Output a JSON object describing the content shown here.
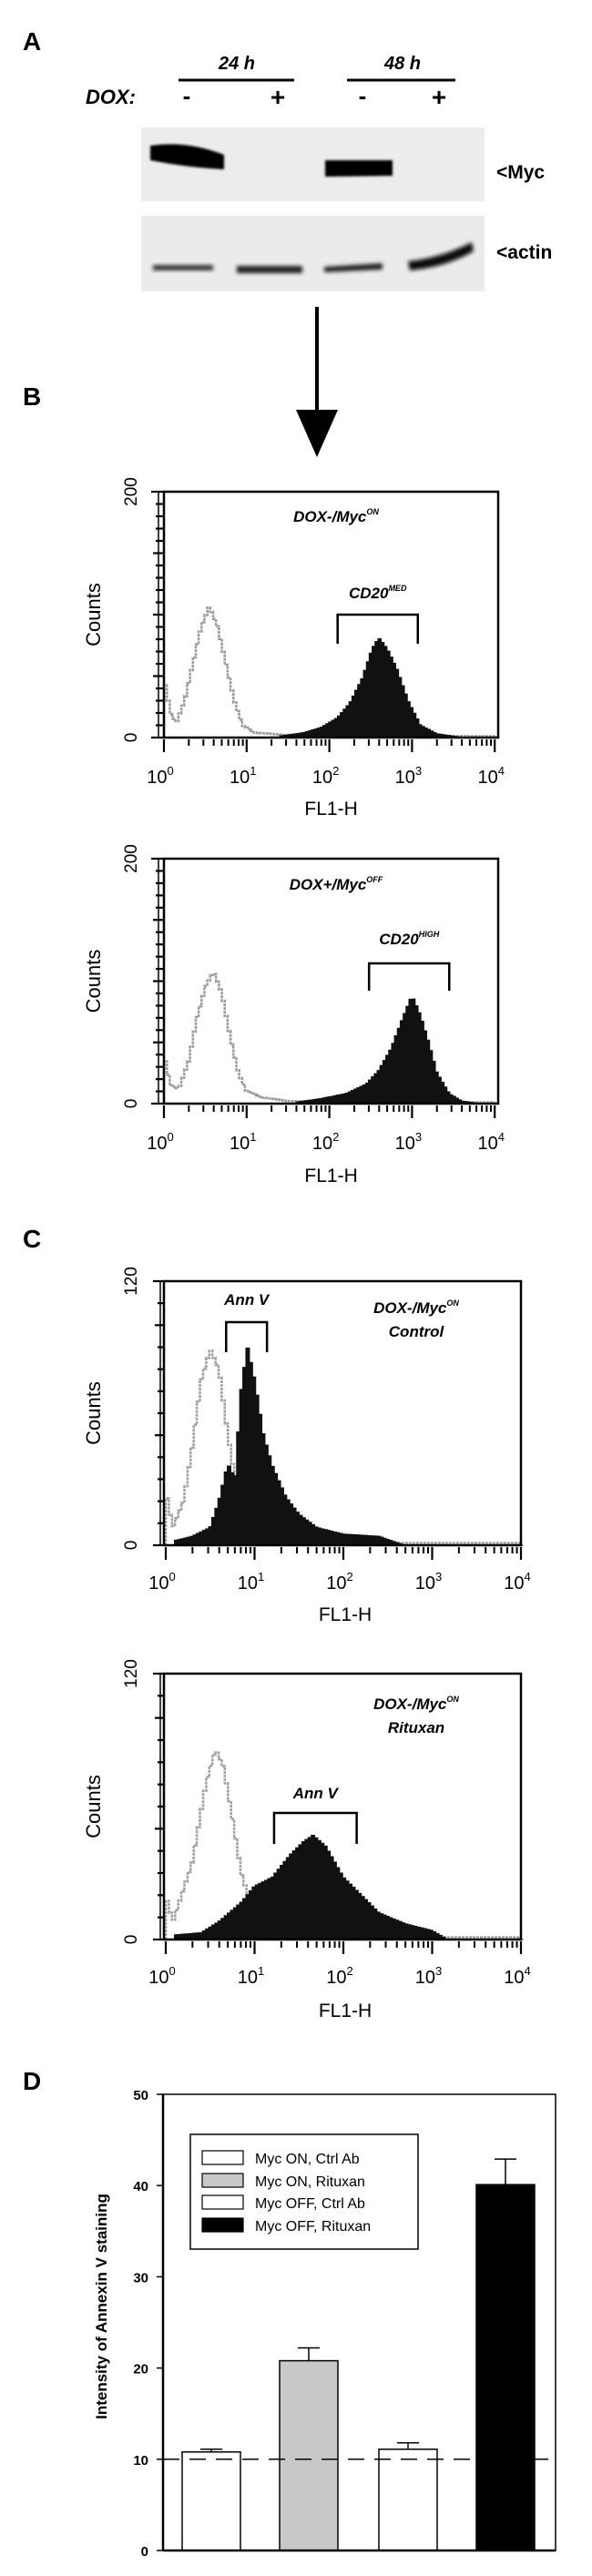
{
  "panel_labels": {
    "a": "A",
    "b": "B",
    "c": "C",
    "d": "D"
  },
  "western_blot": {
    "timepoints": [
      "24 h",
      "48 h"
    ],
    "treatment_label": "DOX:",
    "lanes": [
      "-",
      "+",
      "-",
      "+"
    ],
    "bands": [
      "<Myc",
      "<actin"
    ]
  },
  "chart_data": [
    {
      "type": "area",
      "title": "DOX-/Myc",
      "title_sup": "ON",
      "subtitle": "",
      "gate_label": "CD20",
      "gate_sup": "MED",
      "gate_range_log": [
        2.1,
        3.07
      ],
      "ylabel": "Counts",
      "xlabel": "FL1-H",
      "ylim": [
        0,
        200
      ],
      "yticks": [
        "0",
        "200"
      ],
      "xlim_log": [
        0,
        4
      ],
      "xticks": [
        {
          "base": "10",
          "exp": "0"
        },
        {
          "base": "10",
          "exp": "1"
        },
        {
          "base": "10",
          "exp": "2"
        },
        {
          "base": "10",
          "exp": "3"
        },
        {
          "base": "10",
          "exp": "4"
        }
      ],
      "series": [
        {
          "name": "control",
          "color": "#9a9a9a",
          "points": [
            [
              0,
              49
            ],
            [
              0.08,
              20
            ],
            [
              0.15,
              12
            ],
            [
              0.25,
              30
            ],
            [
              0.35,
              60
            ],
            [
              0.45,
              90
            ],
            [
              0.55,
              107
            ],
            [
              0.65,
              90
            ],
            [
              0.75,
              60
            ],
            [
              0.85,
              30
            ],
            [
              0.95,
              10
            ],
            [
              1.1,
              4
            ],
            [
              1.5,
              2
            ],
            [
              4,
              1
            ]
          ]
        },
        {
          "name": "stained",
          "color": "#111111",
          "points": [
            [
              1.4,
              1
            ],
            [
              1.7,
              4
            ],
            [
              1.9,
              8
            ],
            [
              2.1,
              16
            ],
            [
              2.25,
              28
            ],
            [
              2.4,
              48
            ],
            [
              2.52,
              72
            ],
            [
              2.6,
              81
            ],
            [
              2.7,
              72
            ],
            [
              2.82,
              55
            ],
            [
              2.95,
              30
            ],
            [
              3.1,
              10
            ],
            [
              3.3,
              3
            ],
            [
              3.6,
              0
            ]
          ]
        }
      ]
    },
    {
      "type": "area",
      "title": "DOX+/Myc",
      "title_sup": "OFF",
      "subtitle": "",
      "gate_label": "CD20",
      "gate_sup": "HIGH",
      "gate_range_log": [
        2.48,
        3.45
      ],
      "ylabel": "Counts",
      "xlabel": "FL1-H",
      "ylim": [
        0,
        200
      ],
      "yticks": [
        "0",
        "200"
      ],
      "xlim_log": [
        0,
        4
      ],
      "xticks": [
        {
          "base": "10",
          "exp": "0"
        },
        {
          "base": "10",
          "exp": "1"
        },
        {
          "base": "10",
          "exp": "2"
        },
        {
          "base": "10",
          "exp": "3"
        },
        {
          "base": "10",
          "exp": "4"
        }
      ],
      "series": [
        {
          "name": "control",
          "color": "#9a9a9a",
          "points": [
            [
              0,
              40
            ],
            [
              0.08,
              15
            ],
            [
              0.18,
              12
            ],
            [
              0.3,
              35
            ],
            [
              0.4,
              70
            ],
            [
              0.5,
              95
            ],
            [
              0.6,
              108
            ],
            [
              0.7,
              90
            ],
            [
              0.8,
              55
            ],
            [
              0.9,
              25
            ],
            [
              1.0,
              10
            ],
            [
              1.2,
              5
            ],
            [
              1.5,
              2
            ],
            [
              4,
              1
            ]
          ]
        },
        {
          "name": "stained",
          "color": "#111111",
          "points": [
            [
              1.6,
              1
            ],
            [
              1.9,
              4
            ],
            [
              2.2,
              8
            ],
            [
              2.45,
              16
            ],
            [
              2.6,
              27
            ],
            [
              2.75,
              45
            ],
            [
              2.88,
              68
            ],
            [
              3.0,
              88
            ],
            [
              3.1,
              72
            ],
            [
              3.2,
              50
            ],
            [
              3.3,
              25
            ],
            [
              3.45,
              8
            ],
            [
              3.6,
              2
            ],
            [
              3.8,
              0
            ]
          ]
        }
      ]
    },
    {
      "type": "area",
      "title": "DOX-/Myc",
      "title_sup": "ON",
      "subtitle": "Control",
      "gate_label": "Ann V",
      "gate_sup": "",
      "gate_range_log": [
        0.68,
        1.14
      ],
      "ylabel": "Counts",
      "xlabel": "FL1-H",
      "ylim": [
        0,
        120
      ],
      "yticks": [
        "0",
        "120"
      ],
      "xlim_log": [
        0,
        4
      ],
      "xticks": [
        {
          "base": "10",
          "exp": "0"
        },
        {
          "base": "10",
          "exp": "1"
        },
        {
          "base": "10",
          "exp": "2"
        },
        {
          "base": "10",
          "exp": "3"
        },
        {
          "base": "10",
          "exp": "4"
        }
      ],
      "series": [
        {
          "name": "control",
          "color": "#a0a0a0",
          "points": [
            [
              0,
              25
            ],
            [
              0.08,
              8
            ],
            [
              0.2,
              20
            ],
            [
              0.3,
              45
            ],
            [
              0.4,
              75
            ],
            [
              0.5,
              89
            ],
            [
              0.6,
              80
            ],
            [
              0.7,
              50
            ],
            [
              0.8,
              25
            ],
            [
              0.9,
              12
            ],
            [
              1.1,
              6
            ],
            [
              1.3,
              5
            ],
            [
              1.6,
              4
            ],
            [
              2.0,
              1
            ],
            [
              4,
              1
            ]
          ]
        },
        {
          "name": "stained",
          "color": "#111111",
          "points": [
            [
              0.1,
              2
            ],
            [
              0.3,
              4
            ],
            [
              0.5,
              8
            ],
            [
              0.6,
              20
            ],
            [
              0.7,
              37
            ],
            [
              0.78,
              30
            ],
            [
              0.85,
              70
            ],
            [
              0.92,
              90
            ],
            [
              1.0,
              75
            ],
            [
              1.1,
              50
            ],
            [
              1.2,
              36
            ],
            [
              1.35,
              22
            ],
            [
              1.5,
              14
            ],
            [
              1.7,
              8
            ],
            [
              2.0,
              5
            ],
            [
              2.4,
              4
            ],
            [
              2.68,
              0
            ]
          ]
        }
      ]
    },
    {
      "type": "area",
      "title": "DOX-/Myc",
      "title_sup": "ON",
      "subtitle": "Rituxan",
      "gate_label": "Ann V",
      "gate_sup": "",
      "gate_range_log": [
        1.22,
        2.15
      ],
      "ylabel": "Counts",
      "xlabel": "FL1-H",
      "ylim": [
        0,
        120
      ],
      "yticks": [
        "0",
        "120"
      ],
      "xlim_log": [
        0,
        4
      ],
      "xticks": [
        {
          "base": "10",
          "exp": "0"
        },
        {
          "base": "10",
          "exp": "1"
        },
        {
          "base": "10",
          "exp": "2"
        },
        {
          "base": "10",
          "exp": "3"
        },
        {
          "base": "10",
          "exp": "4"
        }
      ],
      "series": [
        {
          "name": "control",
          "color": "#a0a0a0",
          "points": [
            [
              0,
              20
            ],
            [
              0.08,
              8
            ],
            [
              0.3,
              35
            ],
            [
              0.45,
              70
            ],
            [
              0.56,
              86
            ],
            [
              0.65,
              78
            ],
            [
              0.75,
              55
            ],
            [
              0.85,
              30
            ],
            [
              0.95,
              17
            ],
            [
              1.1,
              8
            ],
            [
              1.3,
              4
            ],
            [
              1.6,
              6
            ],
            [
              1.9,
              2
            ],
            [
              2.0,
              1
            ],
            [
              4,
              1
            ]
          ]
        },
        {
          "name": "stained",
          "color": "#111111",
          "points": [
            [
              0.1,
              2
            ],
            [
              0.4,
              3
            ],
            [
              0.6,
              8
            ],
            [
              0.86,
              17
            ],
            [
              1.0,
              24
            ],
            [
              1.2,
              28
            ],
            [
              1.4,
              38
            ],
            [
              1.55,
              44
            ],
            [
              1.66,
              47
            ],
            [
              1.8,
              42
            ],
            [
              2.0,
              28
            ],
            [
              2.2,
              20
            ],
            [
              2.4,
              12
            ],
            [
              2.7,
              7
            ],
            [
              3.0,
              4
            ],
            [
              3.17,
              0
            ]
          ]
        }
      ]
    },
    {
      "type": "bar",
      "categories": [
        "Myc ON, Ctrl Ab",
        "Myc ON, Rituxan",
        "Myc OFF, Ctrl Ab",
        "Myc OFF, Rituxan"
      ],
      "values": [
        10.8,
        20.8,
        11.1,
        40.1
      ],
      "errors": [
        0.3,
        1.4,
        0.7,
        2.8
      ],
      "colors": [
        "#ffffff",
        "#c8c8c8",
        "#ffffff",
        "#000000"
      ],
      "ylabel": "Intensity of Annexin V staining",
      "xlabel": "",
      "ylim": [
        0,
        50
      ],
      "yticks": [
        "0",
        "10",
        "20",
        "30",
        "40",
        "50"
      ],
      "reference_line": 10,
      "legend_position": "top-left"
    }
  ]
}
